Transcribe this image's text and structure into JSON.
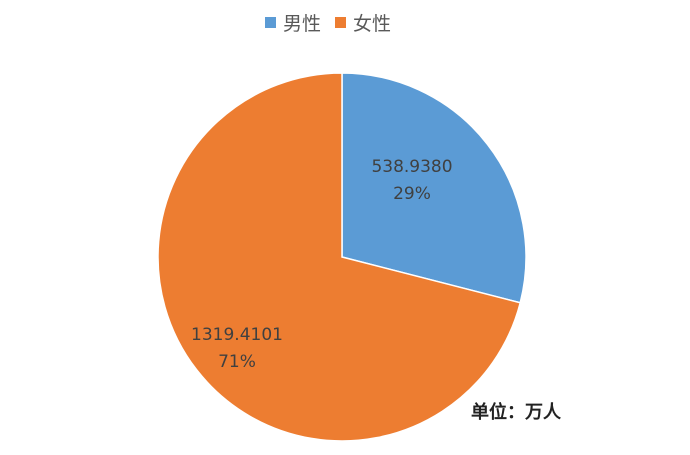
{
  "chart_data": {
    "type": "pie",
    "title": "",
    "series": [
      {
        "name": "男性",
        "value": 538.938,
        "label": "538.9380",
        "percent_label": "29%",
        "color": "#5B9BD5"
      },
      {
        "name": "女性",
        "value": 1319.4101,
        "label": "1319.4101",
        "percent_label": "71%",
        "color": "#ED7D31"
      }
    ],
    "legend_position": "top",
    "start_angle": "12 o'clock, clockwise",
    "annotation": "单位：万人"
  }
}
